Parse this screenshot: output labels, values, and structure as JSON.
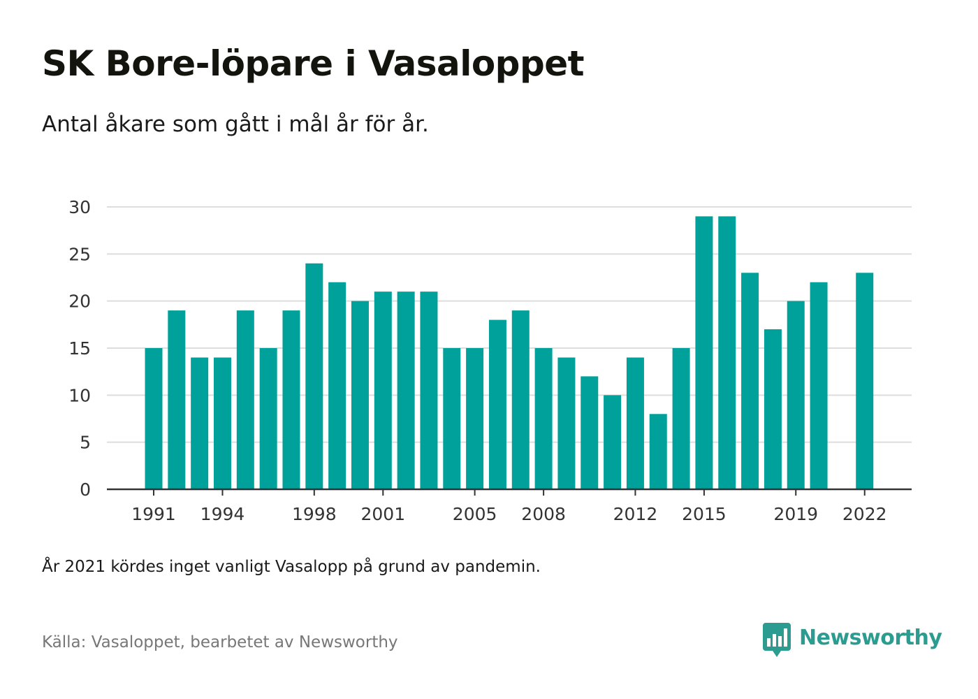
{
  "header": {
    "title": "SK Bore-löpare i Vasaloppet",
    "subtitle": "Antal åkare som gått i mål år för år."
  },
  "footer": {
    "note": "År 2021 kördes inget vanligt Vasalopp på grund av pandemin.",
    "source": "Källa: Vasaloppet, bearbetet av Newsworthy",
    "brand_name": "Newsworthy",
    "brand_icon": "newsworthy-logo-icon"
  },
  "colors": {
    "bar": "#00a19a",
    "brand": "#2d9c90",
    "gridline": "#dddddd",
    "axis": "#333333"
  },
  "chart_data": {
    "type": "bar",
    "title": "SK Bore-löpare i Vasaloppet",
    "subtitle": "Antal åkare som gått i mål år för år.",
    "xlabel": "",
    "ylabel": "",
    "ylim": [
      0,
      30
    ],
    "yticks": [
      0,
      5,
      10,
      15,
      20,
      25,
      30
    ],
    "xtick_labels": [
      "1991",
      "1994",
      "1998",
      "2001",
      "2005",
      "2008",
      "2012",
      "2015",
      "2019",
      "2022"
    ],
    "grid": true,
    "legend": "none",
    "categories": [
      "1991",
      "1992",
      "1993",
      "1994",
      "1995",
      "1996",
      "1997",
      "1998",
      "1999",
      "2000",
      "2001",
      "2002",
      "2003",
      "2004",
      "2005",
      "2006",
      "2007",
      "2008",
      "2009",
      "2010",
      "2011",
      "2012",
      "2013",
      "2014",
      "2015",
      "2016",
      "2017",
      "2018",
      "2019",
      "2020",
      "2021",
      "2022"
    ],
    "values": [
      15,
      19,
      14,
      14,
      19,
      15,
      19,
      24,
      22,
      20,
      21,
      21,
      21,
      15,
      15,
      18,
      19,
      15,
      14,
      12,
      10,
      14,
      8,
      15,
      29,
      29,
      23,
      17,
      20,
      22,
      null,
      23
    ]
  }
}
